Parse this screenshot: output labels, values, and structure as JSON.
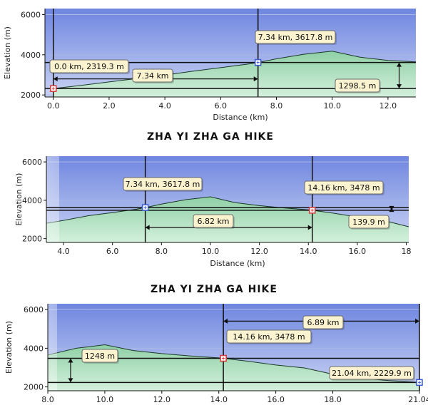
{
  "page": {
    "captions": [
      "ZHA YI ZHA GA HIKE",
      "ZHA YI ZHA GA HIKE"
    ]
  },
  "colors": {
    "sky_top": "#6f86e0",
    "sky_bottom": "#c9d3f3",
    "ground_top": "#8fd0a6",
    "ground_bottom": "#d4f0dc",
    "callout_fill": "#fbf3cf",
    "marker_start": "#d93a3a",
    "marker_end": "#3a5ad9"
  },
  "chart_data": [
    {
      "type": "area",
      "xlabel": "Distance (km)",
      "ylabel": "Elevation (m)",
      "xlim": [
        -0.3,
        13.0
      ],
      "ylim": [
        1900,
        6300
      ],
      "xticks": [
        {
          "v": 0,
          "label": "0.0"
        },
        {
          "v": 2,
          "label": "2.0"
        },
        {
          "v": 4,
          "label": "4.0"
        },
        {
          "v": 6,
          "label": "6.0"
        },
        {
          "v": 8,
          "label": "8.0"
        },
        {
          "v": 10,
          "label": "10.0"
        },
        {
          "v": 12,
          "label": "12.0"
        }
      ],
      "yticks": [
        {
          "v": 2000,
          "label": "2000"
        },
        {
          "v": 4000,
          "label": "4000"
        },
        {
          "v": 6000,
          "label": "6000"
        }
      ],
      "series": [
        {
          "x": [
            0,
            1,
            2,
            3,
            4,
            5,
            6,
            7,
            7.34,
            8,
            9,
            10,
            11,
            12,
            13
          ],
          "y": [
            2319,
            2480,
            2650,
            2820,
            2990,
            3180,
            3360,
            3540,
            3618,
            3800,
            4030,
            4180,
            3880,
            3720,
            3650
          ]
        }
      ],
      "markers": [
        {
          "x": 0.0,
          "y": 2319.3,
          "kind": "start",
          "label": "0.0 km, 2319.3 m"
        },
        {
          "x": 7.34,
          "y": 3617.8,
          "kind": "end",
          "label": "7.34 km, 3617.8 m"
        }
      ],
      "dist_measure": {
        "x1": 0.0,
        "x2": 7.34,
        "y": 2800,
        "label": "7.34 km"
      },
      "elev_measure": {
        "x": 12.4,
        "y1": 2319.3,
        "y2": 3617.8,
        "label": "1298.5 m"
      }
    },
    {
      "type": "area",
      "xlabel": "Distance (km)",
      "ylabel": "Elevation (m)",
      "xlim": [
        3.3,
        18.1
      ],
      "ylim": [
        1800,
        6300
      ],
      "data_start": 5.0,
      "xticks": [
        {
          "v": 4,
          "label": "4.0"
        },
        {
          "v": 6,
          "label": "6.0"
        },
        {
          "v": 8,
          "label": "8.0"
        },
        {
          "v": 10,
          "label": "10.0"
        },
        {
          "v": 12,
          "label": "12.0"
        },
        {
          "v": 14,
          "label": "14.0"
        },
        {
          "v": 16,
          "label": "16.0"
        },
        {
          "v": 18,
          "label": "18"
        }
      ],
      "yticks": [
        {
          "v": 2000,
          "label": "2000"
        },
        {
          "v": 4000,
          "label": "4000"
        },
        {
          "v": 6000,
          "label": "6000"
        }
      ],
      "series": [
        {
          "x": [
            3.3,
            4,
            5,
            6,
            7,
            7.34,
            8,
            9,
            10,
            11,
            12,
            13,
            14,
            14.16,
            15,
            16,
            17,
            18.1
          ],
          "y": [
            2800,
            2950,
            3190,
            3360,
            3540,
            3618,
            3800,
            4030,
            4180,
            3880,
            3720,
            3600,
            3500,
            3478,
            3330,
            3130,
            2970,
            2620
          ]
        }
      ],
      "markers": [
        {
          "x": 7.34,
          "y": 3617.8,
          "kind": "end",
          "label": "7.34 km, 3617.8 m"
        },
        {
          "x": 14.16,
          "y": 3478,
          "kind": "start",
          "label": "14.16 km, 3478 m"
        }
      ],
      "dist_measure": {
        "x1": 7.34,
        "x2": 14.16,
        "y": 2580,
        "label": "6.82 km"
      },
      "elev_measure": {
        "x": 17.4,
        "y1": 3478,
        "y2": 3617.8,
        "label": "139.9 m"
      }
    },
    {
      "type": "area",
      "xlabel": "",
      "ylabel": "Elevation (m)",
      "xlim": [
        8.0,
        21.04
      ],
      "ylim": [
        1800,
        6300
      ],
      "data_start": 8.6,
      "xticks": [
        {
          "v": 8,
          "label": "8.0"
        },
        {
          "v": 10,
          "label": "10.0"
        },
        {
          "v": 12,
          "label": "12.0"
        },
        {
          "v": 14,
          "label": "14.0"
        },
        {
          "v": 16,
          "label": "16.0"
        },
        {
          "v": 18,
          "label": "18.0"
        },
        {
          "v": 21.04,
          "label": "21.04"
        }
      ],
      "yticks": [
        {
          "v": 2000,
          "label": "2000"
        },
        {
          "v": 4000,
          "label": "4000"
        },
        {
          "v": 6000,
          "label": "6000"
        }
      ],
      "series": [
        {
          "x": [
            8.0,
            9,
            10,
            11,
            12,
            13,
            14,
            14.16,
            15,
            16,
            17,
            18,
            19,
            20,
            21.04
          ],
          "y": [
            3650,
            4000,
            4180,
            3880,
            3720,
            3600,
            3500,
            3478,
            3330,
            3130,
            2980,
            2660,
            2450,
            2320,
            2230
          ]
        }
      ],
      "markers": [
        {
          "x": 14.16,
          "y": 3478,
          "kind": "start",
          "label": "14.16 km, 3478 m"
        },
        {
          "x": 21.04,
          "y": 2229.9,
          "kind": "end",
          "label": "21.04 km, 2229.9 m"
        }
      ],
      "dist_measure": {
        "x1": 14.16,
        "x2": 21.04,
        "y": 5400,
        "label": "6.89 km"
      },
      "elev_measure": {
        "x": 8.8,
        "y1": 2229.9,
        "y2": 3478,
        "label": "1248 m"
      }
    }
  ]
}
